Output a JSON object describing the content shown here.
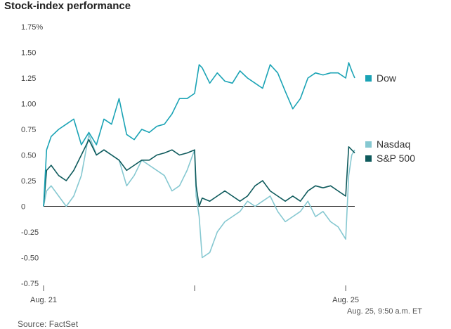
{
  "title": "Stock-index performance",
  "source": "Source: FactSet",
  "timestamp": "Aug. 25, 9:50 a.m. ET",
  "colors": {
    "dow": "#1aa3b5",
    "nasdaq": "#86c8d1",
    "sp500": "#0e5a5c",
    "zero_line": "#222222",
    "grid": "#cccccc"
  },
  "chart_data": {
    "type": "line",
    "title": "Stock-index performance",
    "ylabel": "",
    "xlabel": "",
    "ylim": [
      -0.75,
      1.75
    ],
    "y_ticks": [
      -0.75,
      -0.5,
      -0.25,
      0,
      0.25,
      0.5,
      0.75,
      1.0,
      1.25,
      1.5,
      1.75
    ],
    "y_tick_labels": [
      "-0.75",
      "-0.50",
      "-0.25",
      "0",
      "0.25",
      "0.50",
      "0.75",
      "1.00",
      "1.25",
      "1.50",
      "1.75%"
    ],
    "x_tick_labels": [
      {
        "label": "Aug. 21",
        "day": 0
      },
      {
        "label": "",
        "day": 1
      },
      {
        "label": "Aug. 25",
        "day": 2
      }
    ],
    "grid": false,
    "legend": "right",
    "series": [
      {
        "name": "Dow",
        "color": "#1aa3b5",
        "x": [
          0,
          0.02,
          0.05,
          0.1,
          0.15,
          0.2,
          0.25,
          0.3,
          0.35,
          0.4,
          0.45,
          0.5,
          0.55,
          0.6,
          0.65,
          0.7,
          0.75,
          0.8,
          0.85,
          0.9,
          0.95,
          1.0,
          1.03,
          1.05,
          1.1,
          1.15,
          1.2,
          1.25,
          1.3,
          1.35,
          1.4,
          1.45,
          1.5,
          1.55,
          1.6,
          1.65,
          1.7,
          1.75,
          1.8,
          1.85,
          1.9,
          1.95,
          2.0,
          2.02,
          2.04,
          2.06
        ],
        "values": [
          0,
          0.55,
          0.68,
          0.75,
          0.8,
          0.85,
          0.6,
          0.72,
          0.6,
          0.85,
          0.8,
          1.05,
          0.7,
          0.65,
          0.75,
          0.72,
          0.78,
          0.8,
          0.9,
          1.05,
          1.05,
          1.1,
          1.38,
          1.35,
          1.2,
          1.3,
          1.22,
          1.2,
          1.32,
          1.25,
          1.2,
          1.15,
          1.38,
          1.3,
          1.12,
          0.95,
          1.05,
          1.25,
          1.3,
          1.28,
          1.3,
          1.3,
          1.25,
          1.4,
          1.32,
          1.25
        ]
      },
      {
        "name": "Nasdaq",
        "color": "#86c8d1",
        "x": [
          0,
          0.02,
          0.05,
          0.1,
          0.15,
          0.2,
          0.25,
          0.3,
          0.35,
          0.4,
          0.45,
          0.5,
          0.55,
          0.6,
          0.65,
          0.7,
          0.75,
          0.8,
          0.85,
          0.9,
          0.95,
          1.0,
          1.01,
          1.03,
          1.05,
          1.1,
          1.15,
          1.2,
          1.25,
          1.3,
          1.35,
          1.4,
          1.45,
          1.5,
          1.55,
          1.6,
          1.65,
          1.7,
          1.75,
          1.8,
          1.85,
          1.9,
          1.95,
          2.0,
          2.02,
          2.04,
          2.06
        ],
        "values": [
          0,
          0.15,
          0.2,
          0.1,
          0.0,
          0.1,
          0.3,
          0.7,
          0.5,
          0.55,
          0.5,
          0.45,
          0.2,
          0.3,
          0.45,
          0.4,
          0.35,
          0.3,
          0.15,
          0.2,
          0.35,
          0.55,
          0.1,
          -0.1,
          -0.5,
          -0.45,
          -0.25,
          -0.15,
          -0.1,
          -0.05,
          0.05,
          0.0,
          0.05,
          0.1,
          -0.05,
          -0.15,
          -0.1,
          -0.05,
          0.05,
          -0.1,
          -0.05,
          -0.15,
          -0.2,
          -0.32,
          0.3,
          0.5,
          0.55
        ]
      },
      {
        "name": "S&P 500",
        "color": "#0e5a5c",
        "x": [
          0,
          0.02,
          0.05,
          0.1,
          0.15,
          0.2,
          0.25,
          0.3,
          0.35,
          0.4,
          0.45,
          0.5,
          0.55,
          0.6,
          0.65,
          0.7,
          0.75,
          0.8,
          0.85,
          0.9,
          0.95,
          1.0,
          1.01,
          1.03,
          1.05,
          1.1,
          1.15,
          1.2,
          1.25,
          1.3,
          1.35,
          1.4,
          1.45,
          1.5,
          1.55,
          1.6,
          1.65,
          1.7,
          1.75,
          1.8,
          1.85,
          1.9,
          1.95,
          2.0,
          2.02,
          2.04,
          2.06
        ],
        "values": [
          0,
          0.35,
          0.4,
          0.3,
          0.25,
          0.35,
          0.5,
          0.65,
          0.5,
          0.55,
          0.5,
          0.45,
          0.35,
          0.4,
          0.45,
          0.45,
          0.5,
          0.52,
          0.55,
          0.5,
          0.52,
          0.55,
          0.2,
          0.0,
          0.08,
          0.05,
          0.1,
          0.15,
          0.1,
          0.05,
          0.1,
          0.2,
          0.25,
          0.15,
          0.1,
          0.05,
          0.1,
          0.05,
          0.15,
          0.2,
          0.18,
          0.2,
          0.15,
          0.1,
          0.58,
          0.55,
          0.52
        ]
      }
    ]
  }
}
